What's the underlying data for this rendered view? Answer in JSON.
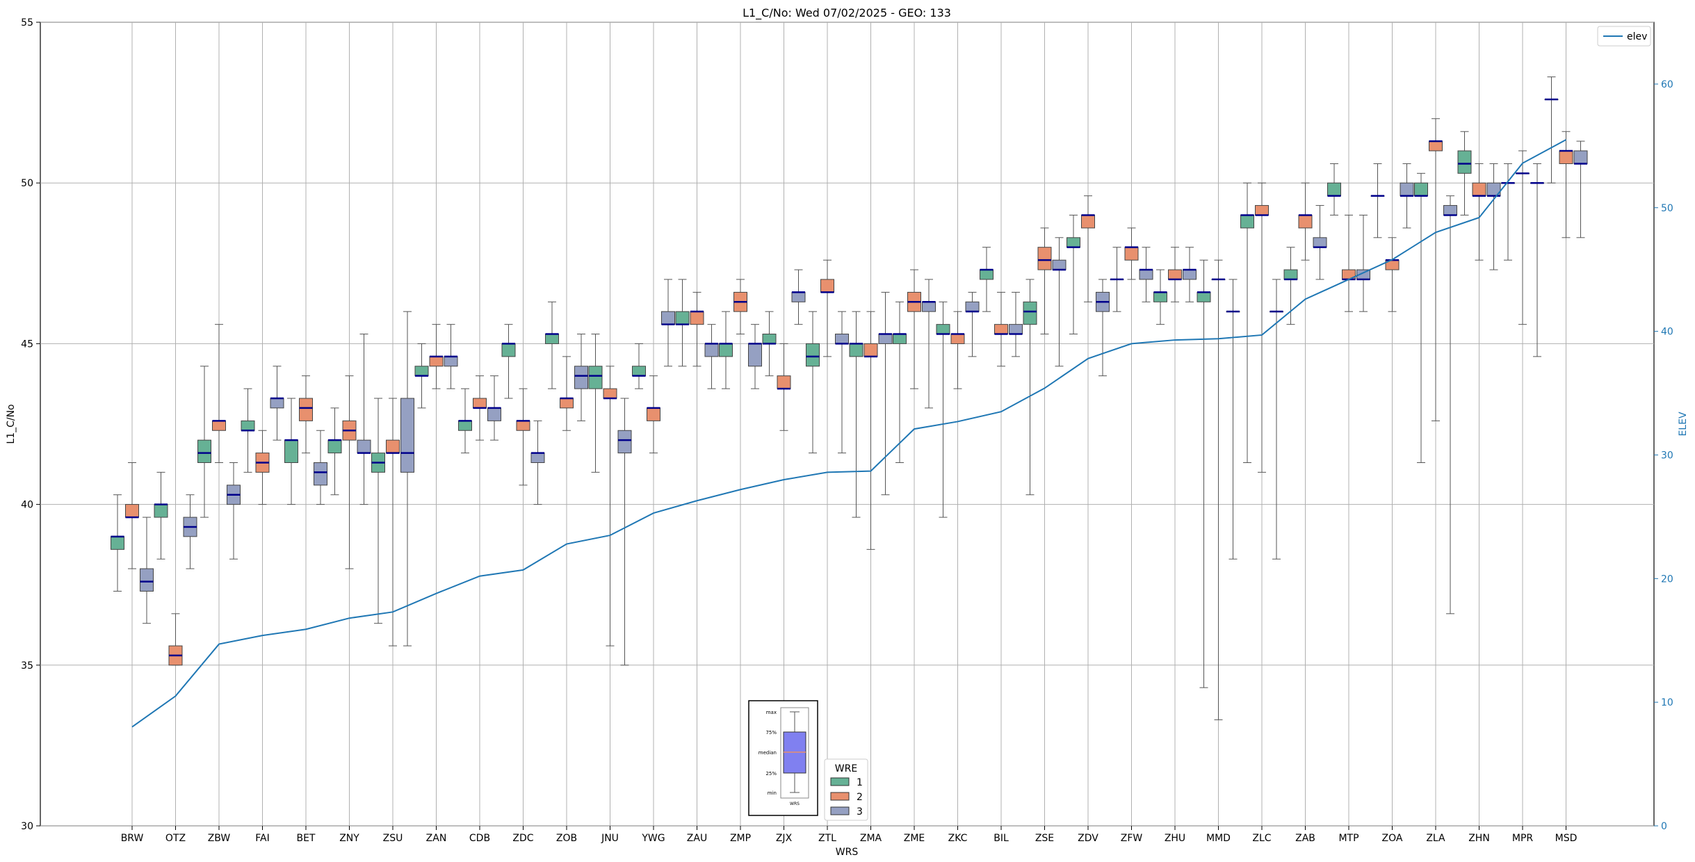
{
  "chart_data": {
    "type": "boxplot",
    "title": "L1_C/No: Wed 07/02/2025 - GEO: 133",
    "xlabel": "WRS",
    "ylabel": "L1_C/No",
    "y2label": "ELEV",
    "ylim": [
      30,
      55
    ],
    "y2lim": [
      0,
      65
    ],
    "yticks": [
      "30",
      "35",
      "40",
      "45",
      "50",
      "55"
    ],
    "y2ticks": [
      "0",
      "10",
      "20",
      "30",
      "40",
      "50",
      "60"
    ],
    "grid": true,
    "colors": {
      "wre1": "#66b195",
      "wre2": "#e8906e",
      "wre3": "#95a0c2",
      "median": "#00008b",
      "elev": "#1f77b4",
      "whisker": "#555555"
    },
    "categories": [
      "BRW",
      "OTZ",
      "ZBW",
      "FAI",
      "BET",
      "ZNY",
      "ZSU",
      "ZAN",
      "CDB",
      "ZDC",
      "ZOB",
      "JNU",
      "YWG",
      "ZAU",
      "ZMP",
      "ZJX",
      "ZTL",
      "ZMA",
      "ZME",
      "ZKC",
      "BIL",
      "ZSE",
      "ZDV",
      "ZFW",
      "ZHU",
      "MMD",
      "ZLC",
      "ZAB",
      "MTP",
      "ZOA",
      "ZLA",
      "ZHN",
      "MPR",
      "MSD"
    ],
    "series": [
      {
        "name": "1",
        "boxes": [
          {
            "min": 37.3,
            "q1": 38.6,
            "med": 39.0,
            "q3": 39.0,
            "max": 40.3
          },
          {
            "min": 38.3,
            "q1": 39.6,
            "med": 40.0,
            "q3": 40.0,
            "max": 41.0
          },
          {
            "min": 39.6,
            "q1": 41.3,
            "med": 41.6,
            "q3": 42.0,
            "max": 44.3
          },
          {
            "min": 41.0,
            "q1": 42.3,
            "med": 42.3,
            "q3": 42.6,
            "max": 43.6
          },
          {
            "min": 40.0,
            "q1": 41.3,
            "med": 42.0,
            "q3": 42.0,
            "max": 43.3
          },
          {
            "min": 40.3,
            "q1": 41.6,
            "med": 42.0,
            "q3": 42.0,
            "max": 43.0
          },
          {
            "min": 36.3,
            "q1": 41.0,
            "med": 41.3,
            "q3": 41.6,
            "max": 43.3
          },
          {
            "min": 43.0,
            "q1": 44.0,
            "med": 44.0,
            "q3": 44.3,
            "max": 45.0
          },
          {
            "min": 41.6,
            "q1": 42.3,
            "med": 42.6,
            "q3": 42.6,
            "max": 43.6
          },
          {
            "min": 43.3,
            "q1": 44.6,
            "med": 45.0,
            "q3": 45.0,
            "max": 45.6
          },
          {
            "min": 43.6,
            "q1": 45.0,
            "med": 45.3,
            "q3": 45.3,
            "max": 46.3
          },
          {
            "min": 41.0,
            "q1": 43.6,
            "med": 44.0,
            "q3": 44.3,
            "max": 45.3
          },
          {
            "min": 43.6,
            "q1": 44.0,
            "med": 44.0,
            "q3": 44.3,
            "max": 45.0
          },
          {
            "min": 44.3,
            "q1": 45.6,
            "med": 45.6,
            "q3": 46.0,
            "max": 47.0
          },
          {
            "min": 43.6,
            "q1": 44.6,
            "med": 45.0,
            "q3": 45.0,
            "max": 46.0
          },
          {
            "min": 44.0,
            "q1": 45.0,
            "med": 45.0,
            "q3": 45.3,
            "max": 46.0
          },
          {
            "min": 41.6,
            "q1": 44.3,
            "med": 44.6,
            "q3": 45.0,
            "max": 46.0
          },
          {
            "min": 39.6,
            "q1": 44.6,
            "med": 45.0,
            "q3": 45.0,
            "max": 46.0
          },
          {
            "min": 41.3,
            "q1": 45.0,
            "med": 45.3,
            "q3": 45.3,
            "max": 46.3
          },
          {
            "min": 39.6,
            "q1": 45.3,
            "med": 45.3,
            "q3": 45.6,
            "max": 46.3
          },
          {
            "min": 46.0,
            "q1": 47.0,
            "med": 47.3,
            "q3": 47.3,
            "max": 48.0
          },
          {
            "min": 40.3,
            "q1": 45.6,
            "med": 46.0,
            "q3": 46.3,
            "max": 47.0
          },
          {
            "min": 45.3,
            "q1": 48.0,
            "med": 48.0,
            "q3": 48.3,
            "max": 49.0
          },
          {
            "min": 46.0,
            "q1": 47.0,
            "med": 47.0,
            "q3": 47.0,
            "max": 48.0
          },
          {
            "min": 45.6,
            "q1": 46.3,
            "med": 46.6,
            "q3": 46.6,
            "max": 47.3
          },
          {
            "min": 34.3,
            "q1": 46.3,
            "med": 46.6,
            "q3": 46.6,
            "max": 47.6
          },
          {
            "min": 41.3,
            "q1": 48.6,
            "med": 49.0,
            "q3": 49.0,
            "max": 50.0
          },
          {
            "min": 45.6,
            "q1": 47.0,
            "med": 47.0,
            "q3": 47.3,
            "max": 48.0
          },
          {
            "min": 49.0,
            "q1": 49.6,
            "med": 49.6,
            "q3": 50.0,
            "max": 50.6
          },
          {
            "min": 48.3,
            "q1": 49.6,
            "med": 49.6,
            "q3": 49.6,
            "max": 50.6
          },
          {
            "min": 41.3,
            "q1": 49.6,
            "med": 49.6,
            "q3": 50.0,
            "max": 50.3
          },
          {
            "min": 49.0,
            "q1": 50.3,
            "med": 50.6,
            "q3": 51.0,
            "max": 51.6
          },
          {
            "min": 47.6,
            "q1": 50.0,
            "med": 50.0,
            "q3": 50.0,
            "max": 50.6
          },
          {
            "min": 50.0,
            "q1": 52.6,
            "med": 52.6,
            "q3": 52.6,
            "max": 53.3
          }
        ]
      },
      {
        "name": "2",
        "boxes": [
          {
            "min": 38.0,
            "q1": 39.6,
            "med": 39.6,
            "q3": 40.0,
            "max": 41.3
          },
          {
            "min": 35.0,
            "q1": 35.0,
            "med": 35.3,
            "q3": 35.6,
            "max": 36.6
          },
          {
            "min": 41.3,
            "q1": 42.3,
            "med": 42.6,
            "q3": 42.6,
            "max": 45.6
          },
          {
            "min": 40.0,
            "q1": 41.0,
            "med": 41.3,
            "q3": 41.6,
            "max": 42.3
          },
          {
            "min": 41.6,
            "q1": 42.6,
            "med": 43.0,
            "q3": 43.3,
            "max": 44.0
          },
          {
            "min": 38.0,
            "q1": 42.0,
            "med": 42.3,
            "q3": 42.6,
            "max": 44.0
          },
          {
            "min": 35.6,
            "q1": 41.6,
            "med": 41.6,
            "q3": 42.0,
            "max": 43.3
          },
          {
            "min": 43.6,
            "q1": 44.3,
            "med": 44.6,
            "q3": 44.6,
            "max": 45.6
          },
          {
            "min": 42.0,
            "q1": 43.0,
            "med": 43.0,
            "q3": 43.3,
            "max": 44.0
          },
          {
            "min": 40.6,
            "q1": 42.3,
            "med": 42.6,
            "q3": 42.6,
            "max": 43.6
          },
          {
            "min": 42.3,
            "q1": 43.0,
            "med": 43.3,
            "q3": 43.3,
            "max": 44.6
          },
          {
            "min": 35.6,
            "q1": 43.3,
            "med": 43.3,
            "q3": 43.6,
            "max": 44.3
          },
          {
            "min": 41.6,
            "q1": 42.6,
            "med": 43.0,
            "q3": 43.0,
            "max": 44.0
          },
          {
            "min": 44.3,
            "q1": 45.6,
            "med": 46.0,
            "q3": 46.0,
            "max": 46.6
          },
          {
            "min": 45.3,
            "q1": 46.0,
            "med": 46.3,
            "q3": 46.6,
            "max": 47.0
          },
          {
            "min": 42.3,
            "q1": 43.6,
            "med": 43.6,
            "q3": 44.0,
            "max": 45.0
          },
          {
            "min": 44.6,
            "q1": 46.6,
            "med": 46.6,
            "q3": 47.0,
            "max": 47.6
          },
          {
            "min": 38.6,
            "q1": 44.6,
            "med": 44.6,
            "q3": 45.0,
            "max": 46.0
          },
          {
            "min": 43.6,
            "q1": 46.0,
            "med": 46.3,
            "q3": 46.6,
            "max": 47.3
          },
          {
            "min": 43.6,
            "q1": 45.0,
            "med": 45.3,
            "q3": 45.3,
            "max": 46.0
          },
          {
            "min": 44.3,
            "q1": 45.3,
            "med": 45.3,
            "q3": 45.6,
            "max": 46.6
          },
          {
            "min": 45.3,
            "q1": 47.3,
            "med": 47.6,
            "q3": 48.0,
            "max": 48.6
          },
          {
            "min": 46.3,
            "q1": 48.6,
            "med": 49.0,
            "q3": 49.0,
            "max": 49.6
          },
          {
            "min": 47.0,
            "q1": 47.6,
            "med": 48.0,
            "q3": 48.0,
            "max": 48.6
          },
          {
            "min": 46.3,
            "q1": 47.0,
            "med": 47.0,
            "q3": 47.3,
            "max": 48.0
          },
          {
            "min": 33.3,
            "q1": 47.0,
            "med": 47.0,
            "q3": 47.0,
            "max": 47.6
          },
          {
            "min": 41.0,
            "q1": 49.0,
            "med": 49.0,
            "q3": 49.3,
            "max": 50.0
          },
          {
            "min": 47.6,
            "q1": 48.6,
            "med": 49.0,
            "q3": 49.0,
            "max": 50.0
          },
          {
            "min": 46.0,
            "q1": 47.0,
            "med": 47.0,
            "q3": 47.3,
            "max": 49.0
          },
          {
            "min": 46.0,
            "q1": 47.3,
            "med": 47.6,
            "q3": 47.6,
            "max": 48.3
          },
          {
            "min": 42.6,
            "q1": 51.0,
            "med": 51.3,
            "q3": 51.3,
            "max": 52.0
          },
          {
            "min": 47.6,
            "q1": 49.6,
            "med": 49.6,
            "q3": 50.0,
            "max": 50.6
          },
          {
            "min": 45.6,
            "q1": 50.3,
            "med": 50.3,
            "q3": 50.3,
            "max": 51.0
          },
          {
            "min": 48.3,
            "q1": 50.6,
            "med": 51.0,
            "q3": 51.0,
            "max": 51.6
          }
        ]
      },
      {
        "name": "3",
        "boxes": [
          {
            "min": 36.3,
            "q1": 37.3,
            "med": 37.6,
            "q3": 38.0,
            "max": 39.6
          },
          {
            "min": 38.0,
            "q1": 39.0,
            "med": 39.3,
            "q3": 39.6,
            "max": 40.3
          },
          {
            "min": 38.3,
            "q1": 40.0,
            "med": 40.3,
            "q3": 40.6,
            "max": 41.3
          },
          {
            "min": 42.0,
            "q1": 43.0,
            "med": 43.3,
            "q3": 43.3,
            "max": 44.3
          },
          {
            "min": 40.0,
            "q1": 40.6,
            "med": 41.0,
            "q3": 41.3,
            "max": 42.3
          },
          {
            "min": 40.0,
            "q1": 41.6,
            "med": 41.6,
            "q3": 42.0,
            "max": 45.3
          },
          {
            "min": 35.6,
            "q1": 41.0,
            "med": 41.6,
            "q3": 43.3,
            "max": 46.0
          },
          {
            "min": 43.6,
            "q1": 44.3,
            "med": 44.6,
            "q3": 44.6,
            "max": 45.6
          },
          {
            "min": 42.0,
            "q1": 42.6,
            "med": 43.0,
            "q3": 43.0,
            "max": 44.0
          },
          {
            "min": 40.0,
            "q1": 41.3,
            "med": 41.6,
            "q3": 41.6,
            "max": 42.6
          },
          {
            "min": 42.6,
            "q1": 43.6,
            "med": 44.0,
            "q3": 44.3,
            "max": 45.3
          },
          {
            "min": 35.0,
            "q1": 41.6,
            "med": 42.0,
            "q3": 42.3,
            "max": 43.3
          },
          {
            "min": 44.3,
            "q1": 45.6,
            "med": 45.6,
            "q3": 46.0,
            "max": 47.0
          },
          {
            "min": 43.6,
            "q1": 44.6,
            "med": 45.0,
            "q3": 45.0,
            "max": 45.6
          },
          {
            "min": 43.6,
            "q1": 44.3,
            "med": 45.0,
            "q3": 45.0,
            "max": 45.6
          },
          {
            "min": 45.6,
            "q1": 46.3,
            "med": 46.6,
            "q3": 46.6,
            "max": 47.3
          },
          {
            "min": 41.6,
            "q1": 45.0,
            "med": 45.0,
            "q3": 45.3,
            "max": 46.0
          },
          {
            "min": 40.3,
            "q1": 45.0,
            "med": 45.3,
            "q3": 45.3,
            "max": 46.6
          },
          {
            "min": 43.0,
            "q1": 46.0,
            "med": 46.3,
            "q3": 46.3,
            "max": 47.0
          },
          {
            "min": 44.6,
            "q1": 46.0,
            "med": 46.0,
            "q3": 46.3,
            "max": 46.6
          },
          {
            "min": 44.6,
            "q1": 45.3,
            "med": 45.3,
            "q3": 45.6,
            "max": 46.6
          },
          {
            "min": 44.3,
            "q1": 47.3,
            "med": 47.3,
            "q3": 47.6,
            "max": 48.3
          },
          {
            "min": 44.0,
            "q1": 46.0,
            "med": 46.3,
            "q3": 46.6,
            "max": 47.0
          },
          {
            "min": 46.3,
            "q1": 47.0,
            "med": 47.3,
            "q3": 47.3,
            "max": 48.0
          },
          {
            "min": 46.3,
            "q1": 47.0,
            "med": 47.3,
            "q3": 47.3,
            "max": 48.0
          },
          {
            "min": 38.3,
            "q1": 46.0,
            "med": 46.0,
            "q3": 46.0,
            "max": 47.0
          },
          {
            "min": 38.3,
            "q1": 46.0,
            "med": 46.0,
            "q3": 46.0,
            "max": 47.0
          },
          {
            "min": 47.0,
            "q1": 48.0,
            "med": 48.0,
            "q3": 48.3,
            "max": 49.3
          },
          {
            "min": 46.0,
            "q1": 47.0,
            "med": 47.0,
            "q3": 47.3,
            "max": 49.0
          },
          {
            "min": 48.6,
            "q1": 49.6,
            "med": 49.6,
            "q3": 50.0,
            "max": 50.6
          },
          {
            "min": 36.6,
            "q1": 49.0,
            "med": 49.0,
            "q3": 49.3,
            "max": 49.6
          },
          {
            "min": 47.3,
            "q1": 49.6,
            "med": 49.6,
            "q3": 50.0,
            "max": 50.6
          },
          {
            "min": 44.6,
            "q1": 50.0,
            "med": 50.0,
            "q3": 50.0,
            "max": 50.6
          },
          {
            "min": 48.3,
            "q1": 50.6,
            "med": 50.6,
            "q3": 51.0,
            "max": 51.3
          }
        ]
      }
    ],
    "elev_line": {
      "name": "elev",
      "values": [
        8.0,
        10.5,
        14.7,
        15.4,
        15.9,
        16.8,
        17.3,
        18.8,
        20.2,
        20.7,
        22.8,
        23.5,
        25.3,
        26.3,
        27.2,
        28.0,
        28.6,
        28.7,
        32.1,
        32.7,
        33.5,
        35.4,
        37.8,
        39.0,
        39.3,
        39.4,
        39.7,
        42.6,
        44.2,
        45.8,
        48.0,
        49.2,
        53.6,
        55.5
      ]
    },
    "legend": {
      "title": "WRE",
      "entries": [
        "1",
        "2",
        "3"
      ],
      "line_label": "elev",
      "placement_line": "top-right",
      "placement_boxes": "bottom-center"
    },
    "inset": {
      "labels": [
        "max",
        "75%",
        "median",
        "25%",
        "min"
      ],
      "xlabel": "WRS"
    }
  }
}
